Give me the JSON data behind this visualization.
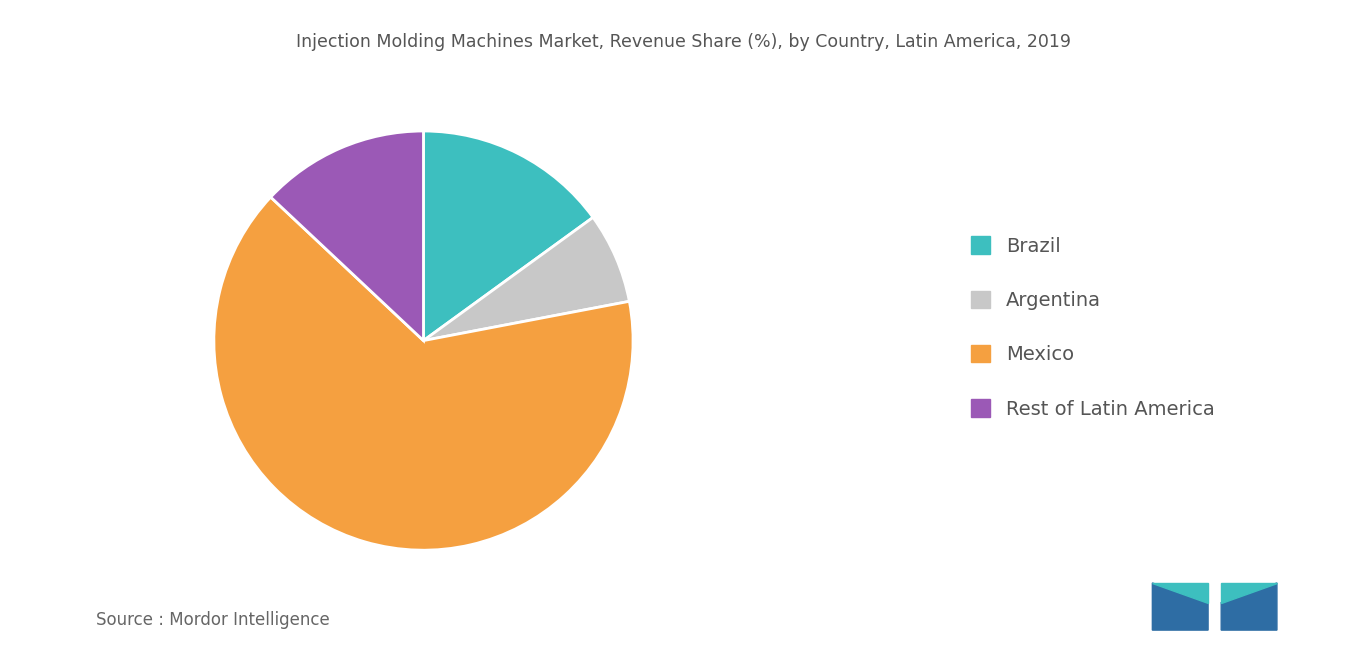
{
  "title": "Injection Molding Machines Market, Revenue Share (%), by Country, Latin America, 2019",
  "labels": [
    "Brazil",
    "Argentina",
    "Mexico",
    "Rest of Latin America"
  ],
  "values": [
    15,
    7,
    65,
    13
  ],
  "colors": [
    "#3dbfbf",
    "#c8c8c8",
    "#f5a040",
    "#9b59b6"
  ],
  "legend_labels": [
    "Brazil",
    "Argentina",
    "Mexico",
    "Rest of Latin America"
  ],
  "source_text": "Source : Mordor Intelligence",
  "background_color": "#ffffff",
  "title_fontsize": 12.5,
  "legend_fontsize": 14,
  "source_fontsize": 12
}
